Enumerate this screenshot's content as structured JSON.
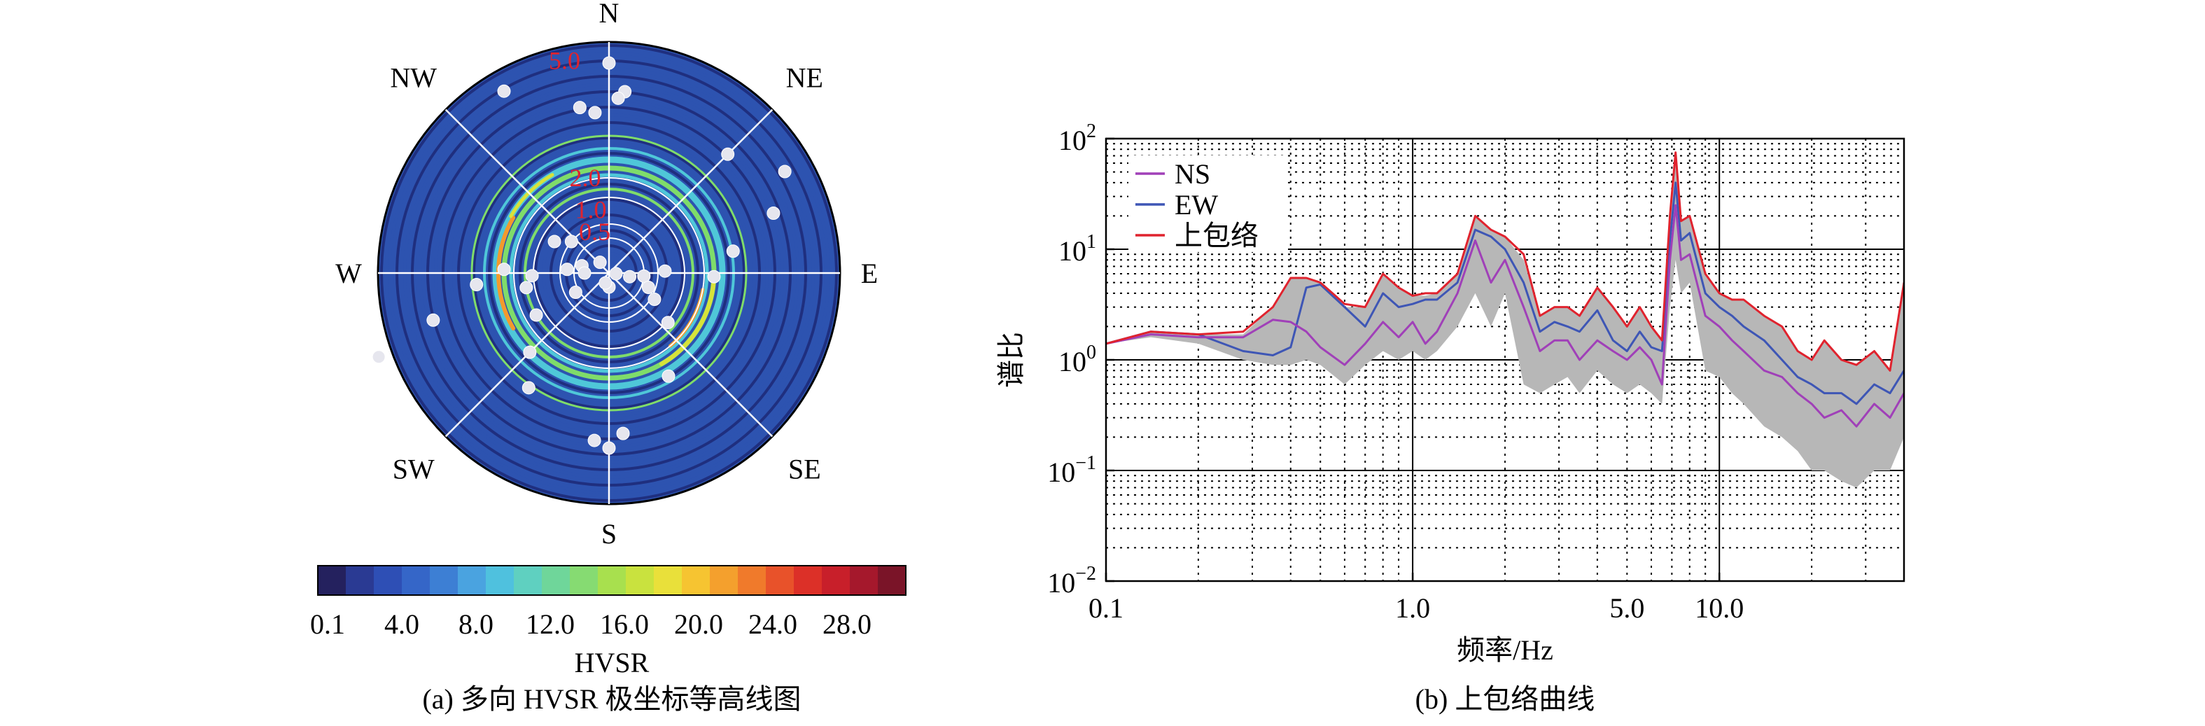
{
  "panel_a": {
    "caption": "(a) 多向 HVSR 极坐标等高线图",
    "directions": [
      {
        "key": "N",
        "label": "N",
        "angle": 0
      },
      {
        "key": "NE",
        "label": "NE",
        "angle": 45
      },
      {
        "key": "E",
        "label": "E",
        "angle": 90
      },
      {
        "key": "SE",
        "label": "SE",
        "angle": 135
      },
      {
        "key": "S",
        "label": "S",
        "angle": 180
      },
      {
        "key": "SW",
        "label": "SW",
        "angle": 225
      },
      {
        "key": "W",
        "label": "W",
        "angle": 270
      },
      {
        "key": "NW",
        "label": "NW",
        "angle": 315
      }
    ],
    "radial_labels": [
      {
        "text": "0.5",
        "value": 0.5
      },
      {
        "text": "1.0",
        "value": 1.0
      },
      {
        "text": "2.0",
        "value": 2.0
      },
      {
        "text": "5.0",
        "value": 5.0
      }
    ],
    "colorbar": {
      "title": "HVSR",
      "ticks": [
        "0.1",
        "4.0",
        "8.0",
        "12.0",
        "16.0",
        "20.0",
        "24.0",
        "28.0"
      ],
      "colors": [
        "#24215e",
        "#2a3a93",
        "#2e4fb5",
        "#3566c8",
        "#3d7fd4",
        "#4aa3e0",
        "#4fc1de",
        "#5fd0c0",
        "#6fd69a",
        "#86db72",
        "#a8e04e",
        "#c9e23e",
        "#e9e03a",
        "#f6c431",
        "#f4a02d",
        "#f07a2b",
        "#e8522a",
        "#dc3028",
        "#c81f2a",
        "#a5182c",
        "#7a1428"
      ]
    },
    "ring_colors": {
      "background": "#2d53b0",
      "dark": "#1f2f7f",
      "cyan": "#4fc7d8",
      "green": "#7fdc6a",
      "yellow": "#d8e23a",
      "orange": "#f39a2c"
    }
  },
  "panel_b": {
    "caption": "(b) 上包络曲线",
    "chart_data": {
      "type": "line",
      "xscale": "log",
      "yscale": "log",
      "xlim": [
        0.1,
        40
      ],
      "ylim": [
        0.01,
        100
      ],
      "xlabel": "频率/Hz",
      "ylabel": "谱比",
      "x_ticks": [
        "0.1",
        "1.0",
        "5.0",
        "10.0"
      ],
      "y_ticks": [
        {
          "base": "10",
          "exp": "2"
        },
        {
          "base": "10",
          "exp": "1"
        },
        {
          "base": "10",
          "exp": "0"
        },
        {
          "base": "10",
          "exp": "−1"
        },
        {
          "base": "10",
          "exp": "−2"
        }
      ],
      "grid": true,
      "legend_position": "top-left",
      "series": [
        {
          "name": "NS",
          "color": "#a040b8",
          "x": [
            0.1,
            0.14,
            0.2,
            0.28,
            0.35,
            0.4,
            0.45,
            0.5,
            0.6,
            0.7,
            0.8,
            0.9,
            1.0,
            1.1,
            1.2,
            1.4,
            1.6,
            1.8,
            2.0,
            2.3,
            2.6,
            2.9,
            3.2,
            3.5,
            4.0,
            4.5,
            5.0,
            5.5,
            6.0,
            6.5,
            6.9,
            7.2,
            7.5,
            8.0,
            9.0,
            10.0,
            11.0,
            12.0,
            14.0,
            16.0,
            18.0,
            20.0,
            22.0,
            25.0,
            28.0,
            32.0,
            36.0,
            40.0
          ],
          "y": [
            1.4,
            1.7,
            1.6,
            1.6,
            2.3,
            2.2,
            1.8,
            1.3,
            0.9,
            1.4,
            2.2,
            1.6,
            2.2,
            1.4,
            1.8,
            4.0,
            12.0,
            5.0,
            8.0,
            3.0,
            1.2,
            1.5,
            1.5,
            1.0,
            1.5,
            1.2,
            1.0,
            1.3,
            1.0,
            0.6,
            8.0,
            25.0,
            8.0,
            9.0,
            2.5,
            2.0,
            1.5,
            1.2,
            0.8,
            0.7,
            0.5,
            0.4,
            0.3,
            0.35,
            0.25,
            0.4,
            0.3,
            0.5
          ]
        },
        {
          "name": "EW",
          "color": "#3e56b5",
          "x": [
            0.1,
            0.14,
            0.2,
            0.28,
            0.35,
            0.4,
            0.45,
            0.5,
            0.6,
            0.7,
            0.8,
            0.9,
            1.0,
            1.1,
            1.2,
            1.4,
            1.6,
            1.8,
            2.0,
            2.3,
            2.6,
            2.9,
            3.2,
            3.5,
            4.0,
            4.5,
            5.0,
            5.5,
            6.0,
            6.5,
            6.9,
            7.2,
            7.5,
            8.0,
            9.0,
            10.0,
            11.0,
            12.0,
            14.0,
            16.0,
            18.0,
            20.0,
            22.0,
            25.0,
            28.0,
            32.0,
            36.0,
            40.0
          ],
          "y": [
            1.4,
            1.8,
            1.7,
            1.2,
            1.1,
            1.3,
            4.5,
            4.8,
            3.0,
            2.0,
            4.0,
            3.0,
            3.2,
            3.5,
            3.5,
            5.0,
            15.0,
            13.0,
            10.0,
            5.0,
            1.8,
            2.2,
            2.0,
            1.8,
            2.8,
            1.5,
            1.2,
            1.8,
            1.3,
            1.2,
            12.0,
            40.0,
            12.0,
            14.0,
            4.0,
            3.0,
            2.5,
            2.0,
            1.5,
            1.0,
            0.7,
            0.6,
            0.5,
            0.5,
            0.4,
            0.6,
            0.5,
            0.8
          ]
        },
        {
          "name": "上包络",
          "color": "#e0232e",
          "x": [
            0.1,
            0.14,
            0.2,
            0.28,
            0.35,
            0.4,
            0.45,
            0.5,
            0.6,
            0.7,
            0.8,
            0.9,
            1.0,
            1.1,
            1.2,
            1.4,
            1.6,
            1.8,
            2.0,
            2.3,
            2.6,
            2.9,
            3.2,
            3.5,
            4.0,
            4.5,
            5.0,
            5.5,
            6.0,
            6.5,
            6.9,
            7.2,
            7.5,
            8.0,
            9.0,
            10.0,
            11.0,
            12.0,
            14.0,
            16.0,
            18.0,
            20.0,
            22.0,
            25.0,
            28.0,
            32.0,
            36.0,
            40.0
          ],
          "y": [
            1.4,
            1.8,
            1.7,
            1.8,
            3.0,
            5.5,
            5.5,
            5.0,
            3.2,
            3.0,
            6.0,
            4.5,
            3.8,
            4.0,
            4.0,
            6.0,
            20.0,
            15.0,
            13.0,
            9.0,
            2.5,
            3.0,
            3.0,
            2.5,
            4.5,
            3.0,
            2.0,
            3.0,
            2.0,
            1.5,
            20.0,
            75.0,
            18.0,
            20.0,
            6.0,
            4.0,
            3.5,
            3.5,
            2.5,
            2.0,
            1.2,
            1.0,
            1.5,
            1.0,
            0.9,
            1.2,
            0.8,
            5.0
          ]
        }
      ],
      "band": {
        "color": "#b7b7b7",
        "x": [
          0.1,
          0.14,
          0.2,
          0.28,
          0.35,
          0.4,
          0.45,
          0.5,
          0.6,
          0.7,
          0.8,
          0.9,
          1.0,
          1.1,
          1.2,
          1.4,
          1.6,
          1.8,
          2.0,
          2.3,
          2.6,
          2.9,
          3.2,
          3.5,
          4.0,
          4.5,
          5.0,
          5.5,
          6.0,
          6.5,
          6.9,
          7.2,
          7.5,
          8.0,
          9.0,
          10.0,
          11.0,
          12.0,
          14.0,
          16.0,
          18.0,
          20.0,
          22.0,
          25.0,
          28.0,
          32.0,
          36.0,
          40.0
        ],
        "low": [
          1.4,
          1.6,
          1.4,
          1.0,
          0.9,
          0.9,
          1.0,
          0.9,
          0.6,
          0.9,
          1.2,
          1.0,
          1.2,
          1.0,
          1.2,
          2.0,
          4.0,
          2.0,
          4.0,
          0.6,
          0.5,
          0.6,
          0.7,
          0.5,
          0.8,
          0.6,
          0.5,
          0.6,
          0.5,
          0.4,
          3.0,
          8.0,
          4.0,
          5.0,
          0.8,
          0.7,
          0.5,
          0.4,
          0.25,
          0.2,
          0.15,
          0.1,
          0.1,
          0.08,
          0.07,
          0.1,
          0.1,
          0.2
        ],
        "high": [
          1.4,
          1.8,
          1.7,
          1.7,
          3.0,
          5.5,
          5.5,
          5.0,
          3.0,
          3.0,
          6.0,
          4.5,
          3.8,
          3.8,
          4.0,
          6.0,
          20.0,
          15.0,
          13.0,
          8.0,
          2.5,
          3.0,
          3.0,
          2.5,
          4.5,
          3.0,
          2.0,
          3.0,
          2.0,
          1.5,
          20.0,
          70.0,
          18.0,
          20.0,
          6.0,
          4.0,
          3.5,
          3.5,
          2.5,
          2.0,
          1.2,
          1.0,
          1.5,
          1.0,
          0.9,
          1.2,
          0.8,
          5.0
        ]
      }
    }
  }
}
